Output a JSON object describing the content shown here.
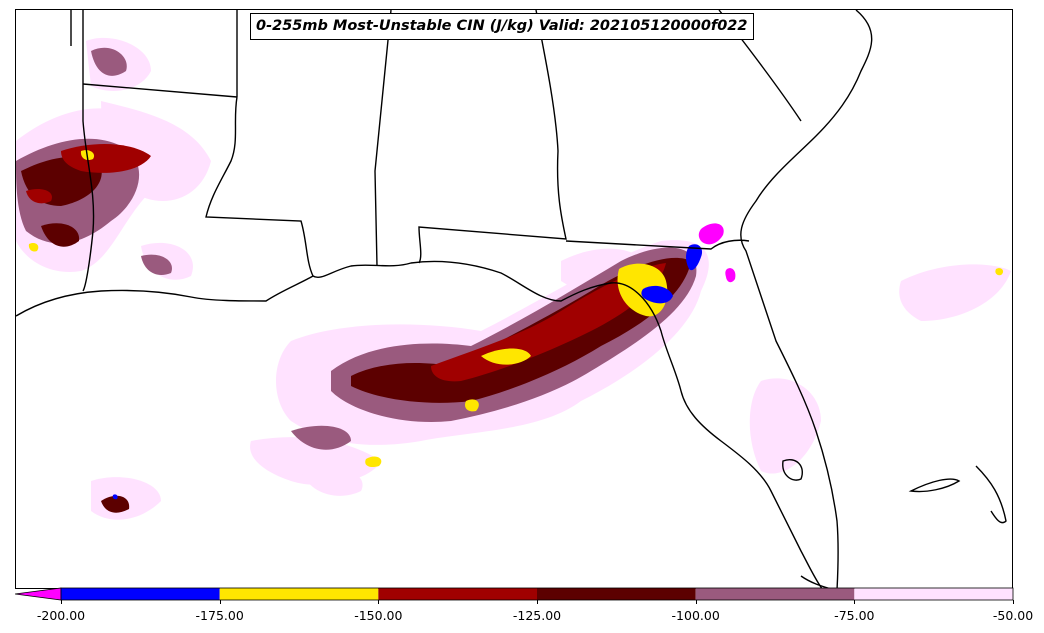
{
  "title": "0-255mb Most-Unstable CIN (J/kg) Valid: 202105120000f022",
  "colorbar": {
    "bins": [
      {
        "from": -200,
        "to": -175,
        "color": "#0000ff"
      },
      {
        "from": -175,
        "to": -150,
        "color": "#ffe600"
      },
      {
        "from": -150,
        "to": -125,
        "color": "#a00000"
      },
      {
        "from": -125,
        "to": -100,
        "color": "#5c0000"
      },
      {
        "from": -100,
        "to": -75,
        "color": "#9a5a7e"
      },
      {
        "from": -75,
        "to": -50,
        "color": "#ffe2ff"
      }
    ],
    "extend_below_color": "#ff00ff",
    "ticks": [
      "-200.00",
      "-175.00",
      "-150.00",
      "-125.00",
      "-100.00",
      "-75.00",
      "-50.00"
    ]
  },
  "map": {
    "region": "Gulf Coast / Southeastern United States",
    "projection_note": "state boundaries and coastlines in black",
    "colors": {
      "boundary": "#000000",
      "land": "#ffffff",
      "very_light": "#ffe2ff",
      "mauve": "#9a5a7e",
      "dark_maroon": "#5c0000",
      "red": "#a00000",
      "yellow": "#ffe600",
      "blue": "#0000ff",
      "magenta": "#ff00ff"
    }
  }
}
